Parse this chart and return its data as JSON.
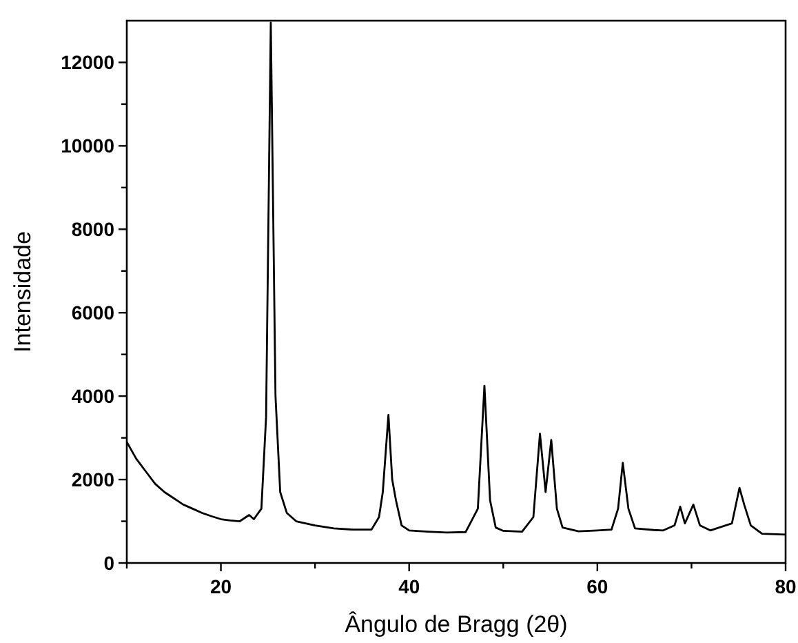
{
  "chart_data": {
    "type": "line",
    "xlabel": "Ângulo de Bragg (2θ)",
    "ylabel": "Intensidade",
    "xlim": [
      10,
      80
    ],
    "ylim": [
      0,
      13000
    ],
    "xticks": [
      {
        "value": 10,
        "label": null
      },
      20,
      {
        "value": 30,
        "label": null
      },
      40,
      {
        "value": 50,
        "label": null
      },
      60,
      {
        "value": 70,
        "label": null
      },
      80
    ],
    "yticks": [
      0,
      {
        "value": 1000,
        "label": null
      },
      2000,
      {
        "value": 3000,
        "label": null
      },
      4000,
      {
        "value": 5000,
        "label": null
      },
      6000,
      {
        "value": 7000,
        "label": null
      },
      8000,
      {
        "value": 9000,
        "label": null
      },
      10000,
      {
        "value": 11000,
        "label": null
      },
      12000
    ],
    "grid": false,
    "marker": "none",
    "line_style": "solid",
    "series": [
      {
        "color": "#000000",
        "x": [
          10,
          11,
          12,
          13,
          14,
          15,
          16,
          17,
          18,
          19,
          20,
          21,
          22,
          23,
          23.5,
          24.3,
          24.8,
          25.3,
          25.8,
          26.3,
          27,
          28,
          30,
          32,
          34,
          36,
          36.8,
          37.2,
          37.8,
          38.2,
          38.6,
          39.2,
          40,
          42,
          44,
          46,
          47.3,
          48,
          48.6,
          49.2,
          50,
          52,
          53.2,
          53.9,
          54.5,
          55.1,
          55.7,
          56.3,
          58,
          60,
          61.5,
          62.2,
          62.7,
          63.3,
          64,
          66,
          67,
          68.2,
          68.8,
          69.3,
          70.2,
          70.9,
          72,
          74.3,
          75.1,
          75.6,
          76.3,
          77.5,
          80
        ],
        "values": [
          2900,
          2500,
          2200,
          1900,
          1700,
          1550,
          1400,
          1300,
          1200,
          1120,
          1050,
          1020,
          1000,
          1150,
          1050,
          1300,
          3500,
          12950,
          4000,
          1700,
          1200,
          1000,
          900,
          830,
          800,
          800,
          1100,
          1700,
          3550,
          2000,
          1500,
          900,
          780,
          750,
          730,
          740,
          1300,
          4250,
          1500,
          850,
          770,
          750,
          1100,
          3100,
          1700,
          2950,
          1300,
          850,
          760,
          780,
          800,
          1300,
          2400,
          1300,
          830,
          790,
          780,
          900,
          1350,
          950,
          1400,
          900,
          780,
          950,
          1800,
          1400,
          900,
          700,
          680
        ]
      }
    ]
  }
}
